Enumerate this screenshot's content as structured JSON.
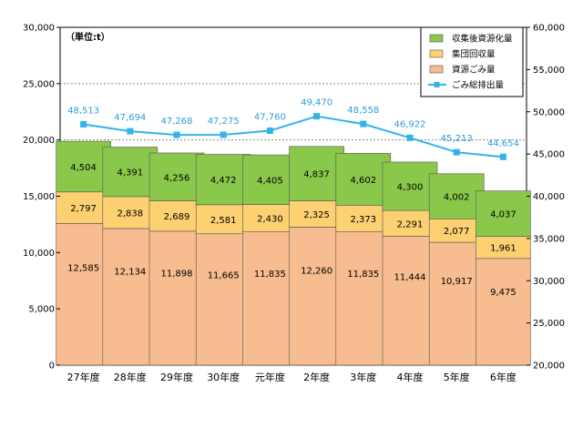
{
  "chart_data": {
    "type": "bar+line",
    "unit_label": "（単位:t）",
    "categories": [
      "27年度",
      "28年度",
      "29年度",
      "30年度",
      "元年度",
      "2年度",
      "3年度",
      "4年度",
      "5年度",
      "6年度"
    ],
    "series": [
      {
        "name": "資源ごみ量",
        "type": "stacked-bar",
        "axis": "left",
        "color": "#f7bc8f",
        "values": [
          12585,
          12134,
          11898,
          11665,
          11835,
          12260,
          11835,
          11444,
          10917,
          9475
        ],
        "labels": [
          "12,585",
          "12,134",
          "11,898",
          "11,665",
          "11,835",
          "12,260",
          "11,835",
          "11,444",
          "10,917",
          "9,475"
        ]
      },
      {
        "name": "集団回収量",
        "type": "stacked-bar",
        "axis": "left",
        "color": "#fdd072",
        "values": [
          2797,
          2838,
          2689,
          2581,
          2430,
          2325,
          2373,
          2291,
          2077,
          1961
        ],
        "labels": [
          "2,797",
          "2,838",
          "2,689",
          "2,581",
          "2,430",
          "2,325",
          "2,373",
          "2,291",
          "2,077",
          "1,961"
        ]
      },
      {
        "name": "収集後資源化量",
        "type": "stacked-bar",
        "axis": "left",
        "color": "#8ac84b",
        "values": [
          4504,
          4391,
          4256,
          4472,
          4405,
          4837,
          4602,
          4300,
          4002,
          4037
        ],
        "labels": [
          "4,504",
          "4,391",
          "4,256",
          "4,472",
          "4,405",
          "4,837",
          "4,602",
          "4,300",
          "4,002",
          "4,037"
        ]
      },
      {
        "name": "ごみ総排出量",
        "type": "line",
        "axis": "right",
        "color": "#33b3ea",
        "values": [
          48513,
          47694,
          47268,
          47275,
          47760,
          49470,
          48558,
          46922,
          45213,
          44654
        ],
        "labels": [
          "48,513",
          "47,694",
          "47,268",
          "47,275",
          "47,760",
          "49,470",
          "48,558",
          "46,922",
          "45,213",
          "44,654"
        ]
      }
    ],
    "legend_order": [
      "収集後資源化量",
      "集団回収量",
      "資源ごみ量",
      "ごみ総排出量"
    ],
    "y_left": {
      "min": 0,
      "max": 30000,
      "step": 5000,
      "tick_labels": [
        "0",
        "5,000",
        "10,000",
        "15,000",
        "20,000",
        "25,000",
        "30,000"
      ]
    },
    "y_right": {
      "min": 20000,
      "max": 60000,
      "step": 5000,
      "tick_labels": [
        "20,000",
        "25,000",
        "30,000",
        "35,000",
        "40,000",
        "45,000",
        "50,000",
        "55,000",
        "60,000"
      ]
    },
    "grid": true,
    "legend_position": "top-right"
  }
}
